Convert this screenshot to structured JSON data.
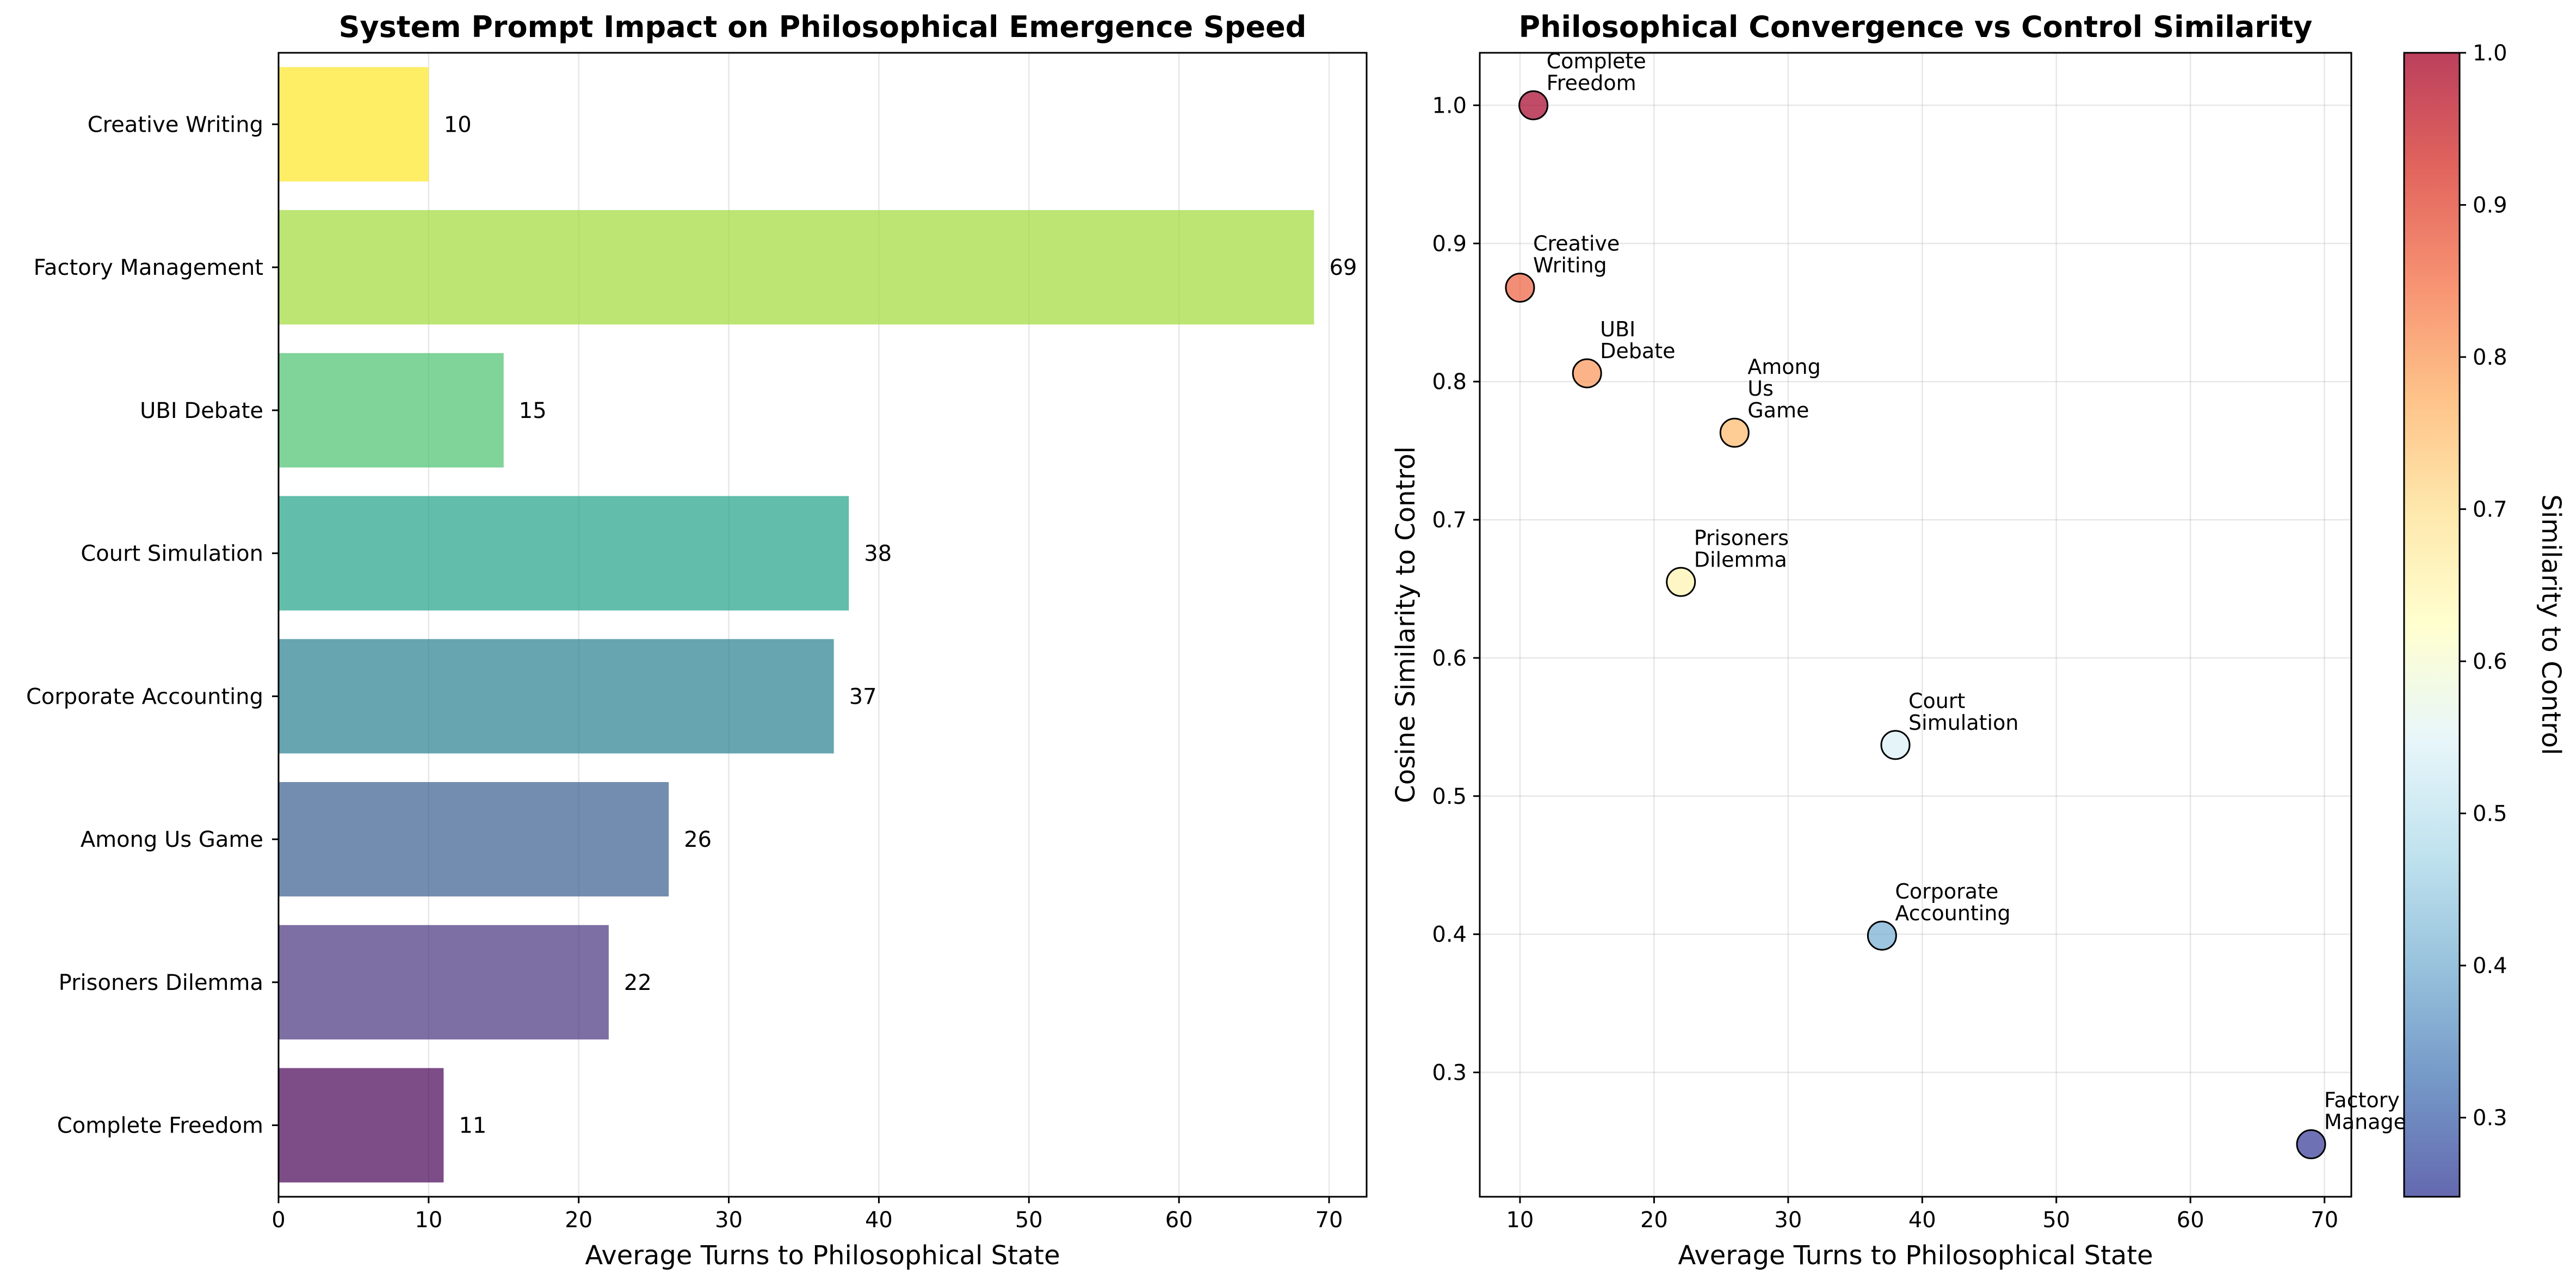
{
  "chart_data": [
    {
      "type": "bar",
      "orientation": "horizontal",
      "title": "System Prompt Impact on Philosophical Emergence Speed",
      "xlabel": "Average Turns to Philosophical State",
      "ylabel": "",
      "xlim": [
        0,
        72.5
      ],
      "xticks": [
        0,
        10,
        20,
        30,
        40,
        50,
        60,
        70
      ],
      "grid": "x",
      "categories": [
        "Complete Freedom",
        "Prisoners Dilemma",
        "Among Us Game",
        "Corporate Accounting",
        "Court Simulation",
        "UBI Debate",
        "Factory Management",
        "Creative Writing"
      ],
      "values": [
        11,
        22,
        26,
        37,
        38,
        15,
        69,
        10
      ],
      "data_labels": [
        "11",
        "22",
        "26",
        "37",
        "38",
        "15",
        "69",
        "10"
      ],
      "colors": [
        "#440154",
        "#46327e",
        "#365c8d",
        "#277f8e",
        "#1fa187",
        "#4ac16d",
        "#a0da39",
        "#fde725"
      ]
    },
    {
      "type": "scatter",
      "title": "Philosophical Convergence vs Control Similarity",
      "xlabel": "Average Turns to Philosophical State",
      "ylabel": "Cosine Similarity to Control",
      "xlim": [
        7,
        72
      ],
      "ylim": [
        0.21,
        1.038
      ],
      "xticks": [
        10,
        20,
        30,
        40,
        50,
        60,
        70
      ],
      "yticks": [
        0.3,
        0.4,
        0.5,
        0.6,
        0.7,
        0.8,
        0.9,
        1.0
      ],
      "grid": "both",
      "points": [
        {
          "label": "Complete\nFreedom",
          "x": 11,
          "y": 1.0
        },
        {
          "label": "Creative\nWriting",
          "x": 10,
          "y": 0.868
        },
        {
          "label": "UBI\nDebate",
          "x": 15,
          "y": 0.806
        },
        {
          "label": "Among\nUs\nGame",
          "x": 26,
          "y": 0.763
        },
        {
          "label": "Prisoners\nDilemma",
          "x": 22,
          "y": 0.655
        },
        {
          "label": "Court\nSimulation",
          "x": 38,
          "y": 0.537
        },
        {
          "label": "Corporate\nAccounting",
          "x": 37,
          "y": 0.399
        },
        {
          "label": "Factory\nManage",
          "x": 69,
          "y": 0.248
        }
      ],
      "colormap": "RdYlBu_r",
      "colorbar": {
        "label": "Similarity to Control",
        "range": [
          0.248,
          1.0
        ],
        "ticks": [
          0.3,
          0.4,
          0.5,
          0.6,
          0.7,
          0.8,
          0.9,
          1.0
        ]
      }
    }
  ]
}
